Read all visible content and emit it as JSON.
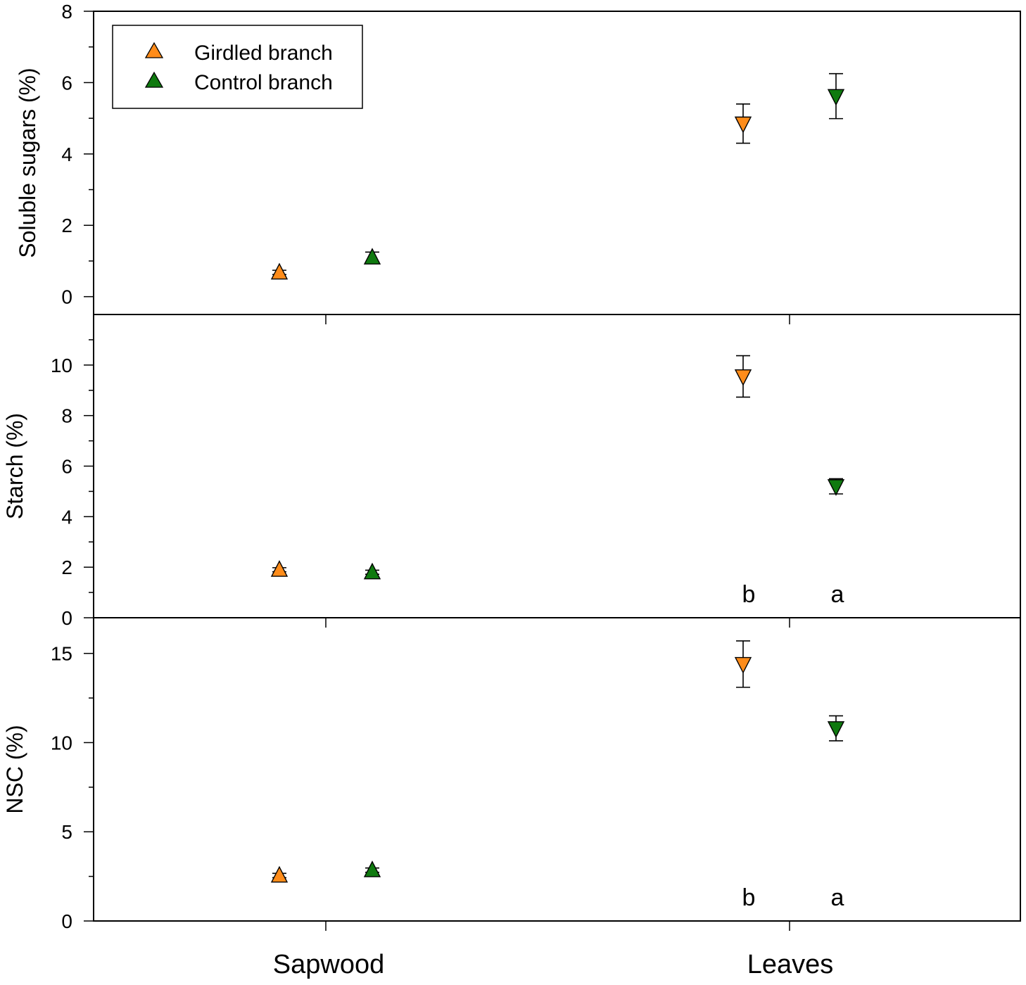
{
  "chart_data": {
    "type": "scatter",
    "categories": [
      "Sapwood",
      "Leaves"
    ],
    "legend": {
      "placement": "top-left",
      "entries": [
        {
          "name": "Girdled branch",
          "color": "#FF8C1A"
        },
        {
          "name": "Control branch",
          "color": "#0F7A0F"
        }
      ]
    },
    "panels": [
      {
        "ylabel": "Soluble sugars (%)",
        "ylim": [
          -0.5,
          8
        ],
        "yticks": [
          0,
          2,
          4,
          6,
          8
        ],
        "ytick_labels": [
          "0",
          "2",
          "4",
          "6",
          "8"
        ],
        "series": [
          {
            "name": "Girdled branch",
            "values": [
              0.68,
              4.85
            ],
            "errors": [
              0.06,
              0.55
            ]
          },
          {
            "name": "Control branch",
            "values": [
              1.1,
              5.62
            ],
            "errors": [
              0.15,
              0.63
            ]
          }
        ],
        "letters": null
      },
      {
        "ylabel": "Starch (%)",
        "ylim": [
          0,
          12
        ],
        "yticks": [
          0,
          2,
          4,
          6,
          8,
          10
        ],
        "ytick_labels": [
          "0",
          "2",
          "4",
          "6",
          "8",
          "10"
        ],
        "series": [
          {
            "name": "Girdled branch",
            "values": [
              1.9,
              9.55
            ],
            "errors": [
              0.08,
              0.82
            ]
          },
          {
            "name": "Control branch",
            "values": [
              1.8,
              5.2
            ],
            "errors": [
              0.08,
              0.3
            ]
          }
        ],
        "letters": [
          "b",
          "a"
        ]
      },
      {
        "ylabel": "NSC (%)",
        "ylim": [
          0,
          17
        ],
        "yticks": [
          0,
          5,
          10,
          15
        ],
        "ytick_labels": [
          "0",
          "5",
          "10",
          "15"
        ],
        "series": [
          {
            "name": "Girdled branch",
            "values": [
              2.55,
              14.4
            ],
            "errors": [
              0.12,
              1.3
            ]
          },
          {
            "name": "Control branch",
            "values": [
              2.85,
              10.8
            ],
            "errors": [
              0.12,
              0.7
            ]
          }
        ],
        "letters": [
          "b",
          "a"
        ]
      }
    ],
    "marker_shapes": {
      "Sapwood": "triangle-up",
      "Leaves": "triangle-down"
    }
  }
}
